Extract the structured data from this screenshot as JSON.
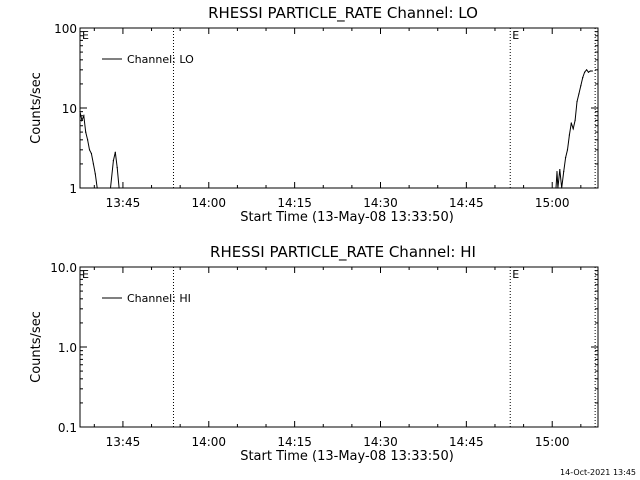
{
  "footer_text": "14-Oct-2021 13:45",
  "chart_data": [
    {
      "type": "line",
      "title": "RHESSI PARTICLE_RATE Channel: LO",
      "xlabel": "Start Time (13-May-08 13:33:50)",
      "ylabel": "Counts/sec",
      "yscale": "log",
      "ylim": [
        1,
        100
      ],
      "xlim": [
        "13:37:30",
        "15:08:00"
      ],
      "x_ticks": [
        "13:45",
        "14:00",
        "14:15",
        "14:30",
        "14:45",
        "15:00"
      ],
      "y_ticks": [
        "1",
        "10",
        "100"
      ],
      "legend": {
        "position": "top-left",
        "label": "Channel: LO"
      },
      "grid": false,
      "markers": [
        {
          "time": "13:37:30",
          "label": "E",
          "line": false
        },
        {
          "time": "13:53:50",
          "label": "",
          "line": true
        },
        {
          "time": "14:52:40",
          "label": "E",
          "line": true
        },
        {
          "time": "15:07:30",
          "label": "",
          "line": true
        }
      ],
      "series": [
        {
          "name": "Channel: LO",
          "color": "#000000",
          "points": [
            [
              "13:37:30",
              9.0
            ],
            [
              "13:37:50",
              7.0
            ],
            [
              "13:38:10",
              8.0
            ],
            [
              "13:38:30",
              5.0
            ],
            [
              "13:38:50",
              4.0
            ],
            [
              "13:39:10",
              3.0
            ],
            [
              "13:39:30",
              2.7
            ],
            [
              "13:39:50",
              2.0
            ],
            [
              "13:40:10",
              1.5
            ],
            [
              "13:40:30",
              1.0
            ],
            [
              "13:42:50",
              1.0
            ],
            [
              "13:43:20",
              2.2
            ],
            [
              "13:43:40",
              2.8
            ],
            [
              "13:44:00",
              1.8
            ],
            [
              "13:44:20",
              1.0
            ],
            [
              "15:00:40",
              1.0
            ],
            [
              "15:00:50",
              1.6
            ],
            [
              "15:01:00",
              1.0
            ],
            [
              "15:01:20",
              1.7
            ],
            [
              "15:01:40",
              1.0
            ],
            [
              "15:02:00",
              1.6
            ],
            [
              "15:02:20",
              2.4
            ],
            [
              "15:02:40",
              3.0
            ],
            [
              "15:03:00",
              4.6
            ],
            [
              "15:03:20",
              6.5
            ],
            [
              "15:03:40",
              5.5
            ],
            [
              "15:04:00",
              7.0
            ],
            [
              "15:04:20",
              12.0
            ],
            [
              "15:04:40",
              15.0
            ],
            [
              "15:05:00",
              19.0
            ],
            [
              "15:05:20",
              24.0
            ],
            [
              "15:05:40",
              28.0
            ],
            [
              "15:06:00",
              30.0
            ],
            [
              "15:06:20",
              28.0
            ],
            [
              "15:06:40",
              29.0
            ],
            [
              "15:07:00",
              29.0
            ]
          ]
        }
      ]
    },
    {
      "type": "line",
      "title": "RHESSI PARTICLE_RATE Channel: HI",
      "xlabel": "Start Time (13-May-08 13:33:50)",
      "ylabel": "Counts/sec",
      "yscale": "log",
      "ylim": [
        0.1,
        10
      ],
      "xlim": [
        "13:37:30",
        "15:08:00"
      ],
      "x_ticks": [
        "13:45",
        "14:00",
        "14:15",
        "14:30",
        "14:45",
        "15:00"
      ],
      "y_ticks": [
        "0.1",
        "1.0",
        "10.0"
      ],
      "legend": {
        "position": "top-left",
        "label": "Channel: HI"
      },
      "grid": false,
      "markers": [
        {
          "time": "13:37:30",
          "label": "E",
          "line": false
        },
        {
          "time": "13:53:50",
          "label": "",
          "line": true
        },
        {
          "time": "14:52:40",
          "label": "E",
          "line": true
        },
        {
          "time": "15:07:30",
          "label": "",
          "line": true
        }
      ],
      "series": [
        {
          "name": "Channel: HI",
          "color": "#000000",
          "points": []
        }
      ]
    }
  ]
}
